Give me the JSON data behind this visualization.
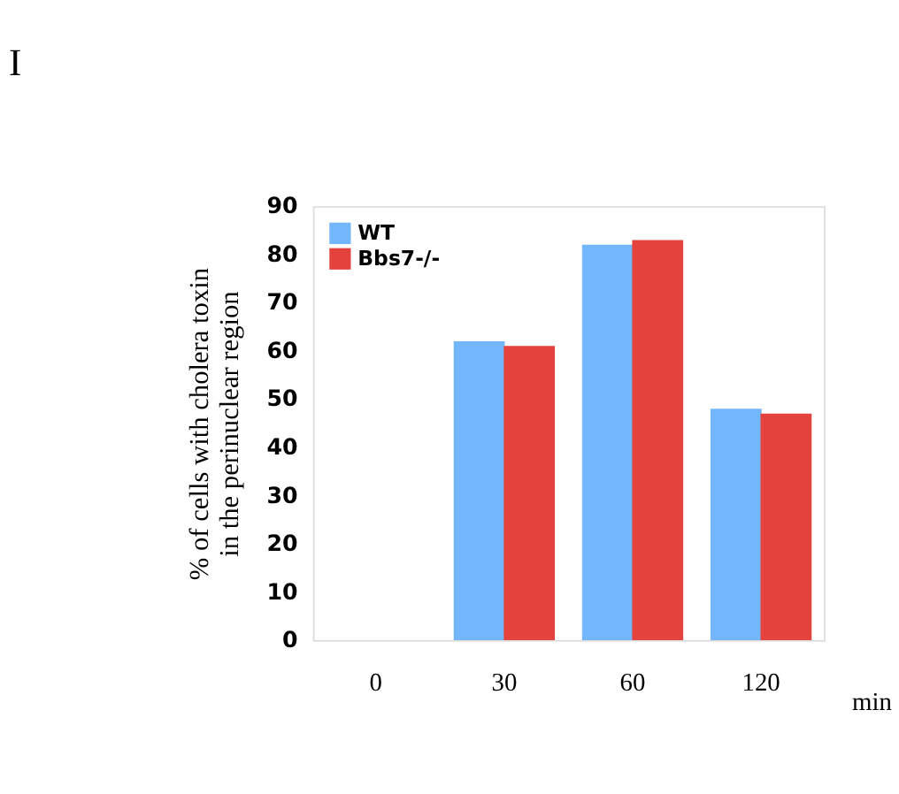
{
  "chart_data": {
    "type": "bar",
    "title": "I",
    "categories": [
      "0",
      "30",
      "60",
      "120"
    ],
    "series": [
      {
        "name": "WT",
        "color": "#74b6fb",
        "values": [
          0,
          62,
          82,
          48
        ]
      },
      {
        "name": "Bbs7-/-",
        "color": "#e4433d",
        "values": [
          0,
          61,
          83,
          47
        ]
      }
    ],
    "xlabel": "min",
    "ylabel": "% of cells with cholera toxin in the perinuclear region",
    "ylim": [
      0,
      90
    ],
    "yticks": [
      0,
      10,
      20,
      30,
      40,
      50,
      60,
      70,
      80,
      90
    ],
    "grid": false,
    "legend": "top left"
  }
}
